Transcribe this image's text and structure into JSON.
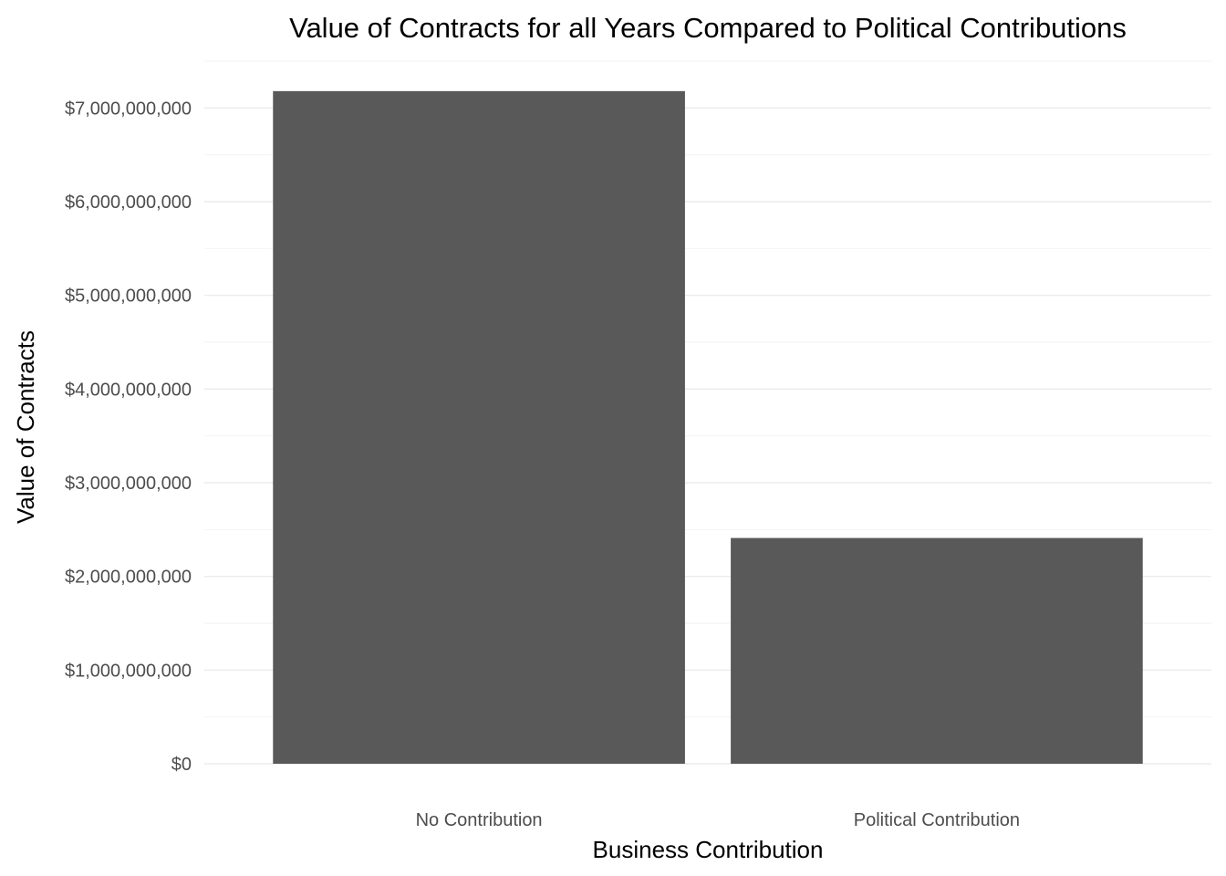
{
  "chart_data": {
    "type": "bar",
    "title": "Value of Contracts for all Years Compared to Political Contributions",
    "xlabel": "Business Contribution",
    "ylabel": "Value of Contracts",
    "categories": [
      "No Contribution",
      "Political Contribution"
    ],
    "values": [
      7180000000,
      2410000000
    ],
    "ylim": [
      0,
      7500000000
    ],
    "yticks": [
      0,
      1000000000,
      2000000000,
      3000000000,
      4000000000,
      5000000000,
      6000000000,
      7000000000
    ],
    "ytick_labels": [
      "$0",
      "$1,000,000,000",
      "$2,000,000,000",
      "$3,000,000,000",
      "$4,000,000,000",
      "$5,000,000,000",
      "$6,000,000,000",
      "$7,000,000,000"
    ],
    "grid": true,
    "legend": "none",
    "bar_color": "#595959"
  }
}
